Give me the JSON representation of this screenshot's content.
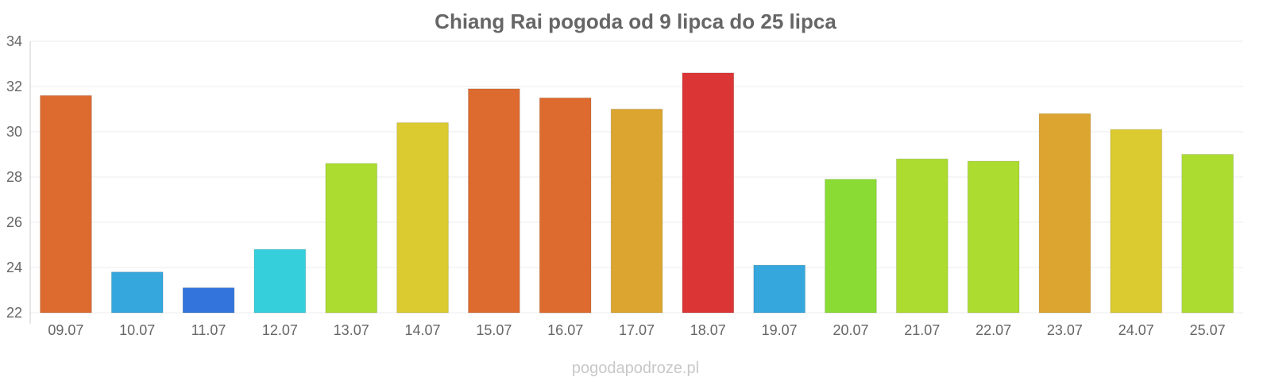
{
  "chart_data": {
    "type": "bar",
    "title": "Chiang Rai pogoda od 9 lipca do 25 lipca",
    "xlabel": "",
    "ylabel": "",
    "categories": [
      "09.07",
      "10.07",
      "11.07",
      "12.07",
      "13.07",
      "14.07",
      "15.07",
      "16.07",
      "17.07",
      "18.07",
      "19.07",
      "20.07",
      "21.07",
      "22.07",
      "23.07",
      "24.07",
      "25.07"
    ],
    "values": [
      31.6,
      23.8,
      23.1,
      24.8,
      28.6,
      30.4,
      31.9,
      31.5,
      31.0,
      32.6,
      24.1,
      27.9,
      28.8,
      28.7,
      30.8,
      30.1,
      29.0
    ],
    "colors": [
      "#dd6b30",
      "#35a7dc",
      "#3274dc",
      "#35cfdc",
      "#acdc30",
      "#dccb30",
      "#dd6b30",
      "#dd6b30",
      "#dca530",
      "#dc3535",
      "#35a7dc",
      "#8adc35",
      "#acdc30",
      "#acdc30",
      "#dca530",
      "#dccb30",
      "#acdc30"
    ],
    "ylim": [
      22,
      34
    ],
    "yticks": [
      22,
      24,
      26,
      28,
      30,
      32,
      34
    ],
    "grid": true,
    "legend": "none"
  },
  "watermark": "pogodapodroze.pl"
}
